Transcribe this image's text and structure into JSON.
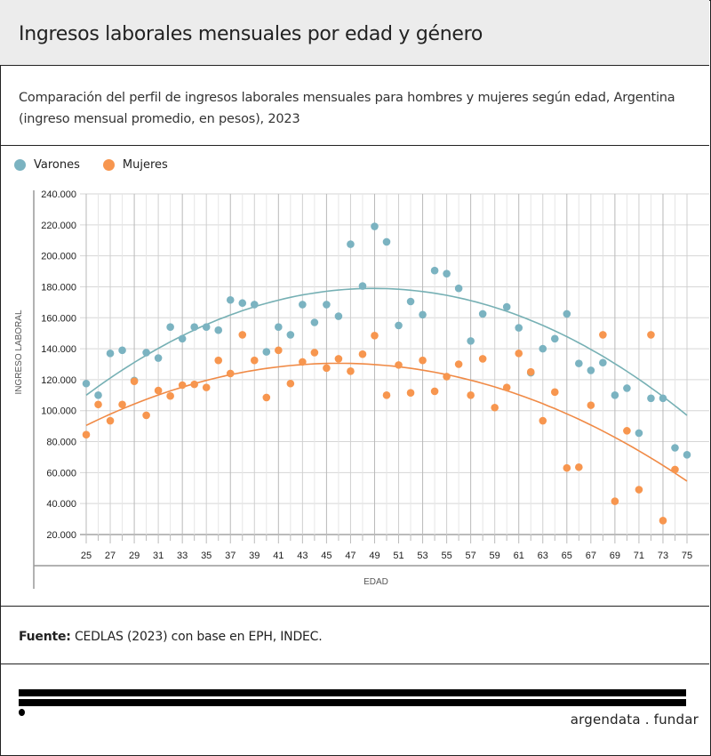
{
  "header": {
    "title": "Ingresos laborales mensuales por edad y género"
  },
  "subtitle": "Comparación del perfil de ingresos laborales mensuales para hombres y mujeres según edad, Argentina (ingreso mensual promedio, en pesos), 2023",
  "source": {
    "label": "Fuente:",
    "text": " CEDLAS (2023) con base en EPH, INDEC."
  },
  "brand": "argendata . fundar",
  "colors": {
    "varones": "#7bb3c1",
    "mujeres": "#f7964f",
    "trend_varones": "#76b0b4",
    "trend_mujeres": "#f08a46"
  },
  "chart_data": {
    "type": "scatter",
    "xlabel": "EDAD",
    "ylabel": "INGRESO LABORAL",
    "xlim": [
      25,
      75
    ],
    "ylim": [
      20000,
      240000
    ],
    "x_ticks": [
      25,
      27,
      29,
      31,
      33,
      35,
      37,
      39,
      41,
      43,
      45,
      47,
      49,
      51,
      53,
      55,
      57,
      59,
      61,
      63,
      65,
      67,
      69,
      71,
      73,
      75
    ],
    "y_ticks": [
      20000,
      40000,
      60000,
      80000,
      100000,
      120000,
      140000,
      160000,
      180000,
      200000,
      220000,
      240000
    ],
    "y_tick_labels": [
      "20.000",
      "40.000",
      "60.000",
      "80.000",
      "100.000",
      "120.000",
      "140.000",
      "160.000",
      "180.000",
      "200.000",
      "220.000",
      "240.000"
    ],
    "legend": {
      "position": "top-left",
      "entries": [
        "Varones",
        "Mujeres"
      ]
    },
    "grid": true,
    "series": [
      {
        "name": "Varones",
        "x": [
          25,
          26,
          27,
          28,
          29,
          30,
          31,
          32,
          33,
          34,
          35,
          36,
          37,
          38,
          39,
          40,
          41,
          42,
          43,
          44,
          45,
          46,
          47,
          48,
          49,
          50,
          51,
          52,
          53,
          54,
          55,
          56,
          57,
          58,
          60,
          61,
          62,
          63,
          64,
          65,
          66,
          67,
          68,
          69,
          70,
          71,
          72,
          73,
          74,
          75
        ],
        "y": [
          117500,
          110000,
          137000,
          139000,
          119500,
          137500,
          134000,
          154000,
          146500,
          154000,
          154000,
          152000,
          171500,
          169500,
          168500,
          138000,
          154000,
          149000,
          168500,
          157000,
          168500,
          161000,
          207500,
          180500,
          219000,
          209000,
          155000,
          170500,
          162000,
          190500,
          188500,
          179000,
          145000,
          162500,
          167000,
          153500,
          124500,
          140000,
          146500,
          162500,
          130500,
          126000,
          131000,
          110000,
          114500,
          85500,
          108000,
          108000,
          76000,
          71500
        ],
        "trend": [
          110000,
          178500,
          97000
        ]
      },
      {
        "name": "Mujeres",
        "x": [
          25,
          26,
          27,
          28,
          29,
          30,
          31,
          32,
          33,
          34,
          35,
          36,
          37,
          38,
          39,
          40,
          41,
          42,
          43,
          44,
          45,
          46,
          47,
          48,
          49,
          50,
          51,
          52,
          53,
          54,
          55,
          56,
          57,
          58,
          59,
          60,
          61,
          62,
          63,
          64,
          65,
          66,
          67,
          68,
          69,
          70,
          71,
          72,
          73,
          74
        ],
        "y": [
          84500,
          104000,
          93500,
          104000,
          119000,
          97000,
          113000,
          109500,
          116500,
          117000,
          115000,
          132500,
          124000,
          149000,
          132500,
          108500,
          139000,
          117500,
          131500,
          137500,
          127500,
          133500,
          125500,
          136500,
          148500,
          110000,
          129500,
          111500,
          132500,
          112500,
          122000,
          130000,
          110000,
          133500,
          102000,
          115000,
          137000,
          125000,
          93500,
          112000,
          63000,
          63500,
          103500,
          149000,
          41500,
          87000,
          49000,
          149000,
          29000,
          62000
        ],
        "trend": [
          90500,
          130500,
          54500
        ]
      }
    ]
  }
}
